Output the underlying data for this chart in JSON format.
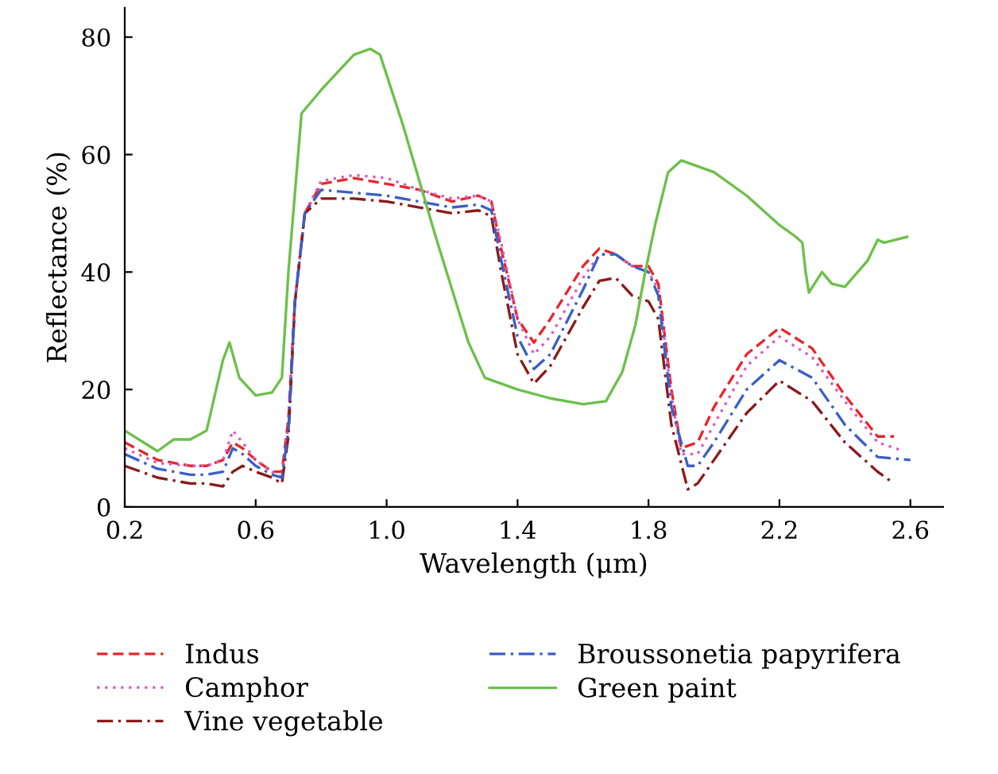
{
  "chart_data": {
    "type": "line",
    "xlabel": "Wavelength (μm)",
    "ylabel": "Reflectance (%)",
    "xlim": [
      0.2,
      2.7
    ],
    "ylim": [
      0,
      85
    ],
    "xticks": [
      {
        "value": 0.2,
        "label": "0.2"
      },
      {
        "value": 0.6,
        "label": "0.6"
      },
      {
        "value": 1.0,
        "label": "1.0"
      },
      {
        "value": 1.4,
        "label": "1.4"
      },
      {
        "value": 1.8,
        "label": "1.8"
      },
      {
        "value": 2.2,
        "label": "2.2"
      },
      {
        "value": 2.6,
        "label": "2.6"
      }
    ],
    "yticks": [
      0,
      20,
      40,
      60,
      80
    ],
    "grid": false,
    "legend": "bottom",
    "series": [
      {
        "name": "Indus",
        "color": "#e8262a",
        "line_style": "dashed",
        "x": [
          0.2,
          0.3,
          0.4,
          0.45,
          0.5,
          0.53,
          0.56,
          0.6,
          0.65,
          0.68,
          0.7,
          0.72,
          0.75,
          0.8,
          0.9,
          1.0,
          1.1,
          1.2,
          1.28,
          1.32,
          1.35,
          1.4,
          1.45,
          1.5,
          1.6,
          1.65,
          1.7,
          1.75,
          1.8,
          1.83,
          1.87,
          1.9,
          1.95,
          2.0,
          2.1,
          2.2,
          2.3,
          2.4,
          2.5,
          2.55
        ],
        "values": [
          11,
          8,
          7,
          7,
          8,
          11,
          10,
          8,
          6,
          6,
          15,
          35,
          50,
          55,
          56,
          55,
          54,
          52,
          53,
          52,
          44,
          32,
          28,
          32,
          41,
          44,
          43,
          41,
          41,
          38,
          20,
          10,
          11,
          17,
          26,
          30.5,
          27,
          19,
          12,
          12
        ]
      },
      {
        "name": "Camphor",
        "color": "#d45ec8",
        "line_style": "dotted",
        "x": [
          0.2,
          0.3,
          0.4,
          0.45,
          0.5,
          0.53,
          0.56,
          0.6,
          0.65,
          0.68,
          0.7,
          0.72,
          0.75,
          0.8,
          0.9,
          1.0,
          1.1,
          1.2,
          1.28,
          1.32,
          1.35,
          1.4,
          1.45,
          1.5,
          1.6,
          1.65,
          1.7,
          1.75,
          1.8,
          1.83,
          1.87,
          1.9,
          1.95,
          2.0,
          2.1,
          2.2,
          2.3,
          2.4,
          2.5,
          2.58
        ],
        "values": [
          10,
          7.5,
          7,
          7,
          8,
          13,
          11,
          8,
          6,
          5,
          14,
          35,
          50,
          55.5,
          56.5,
          56,
          54,
          52.5,
          53,
          52,
          45,
          32,
          26,
          29,
          39,
          43,
          43,
          41,
          40,
          37,
          19,
          9,
          9,
          14,
          24,
          29,
          25.5,
          18,
          11,
          9.5
        ]
      },
      {
        "name": "Vine vegetable",
        "color": "#8b1a1a",
        "line_style": "dashdot",
        "x": [
          0.2,
          0.3,
          0.4,
          0.45,
          0.5,
          0.53,
          0.56,
          0.6,
          0.65,
          0.68,
          0.7,
          0.72,
          0.75,
          0.8,
          0.9,
          1.0,
          1.1,
          1.2,
          1.28,
          1.32,
          1.35,
          1.4,
          1.45,
          1.5,
          1.6,
          1.65,
          1.7,
          1.75,
          1.8,
          1.83,
          1.87,
          1.92,
          1.95,
          2.0,
          2.1,
          2.2,
          2.3,
          2.4,
          2.5,
          2.55
        ],
        "values": [
          7,
          5,
          4,
          4,
          3.5,
          6,
          7,
          6,
          5,
          4,
          12,
          35,
          50,
          52.5,
          52.5,
          52,
          51,
          50,
          50.5,
          49.5,
          40,
          26,
          21,
          24,
          34,
          38.5,
          39,
          36,
          35,
          32,
          14,
          3,
          4,
          8,
          16,
          21.5,
          18,
          11,
          6,
          4
        ]
      },
      {
        "name": "Broussonetia papyrifera",
        "color": "#3a5fc8",
        "line_style": "dashdot",
        "x": [
          0.2,
          0.3,
          0.4,
          0.45,
          0.5,
          0.53,
          0.56,
          0.6,
          0.65,
          0.68,
          0.7,
          0.72,
          0.75,
          0.8,
          0.9,
          1.0,
          1.1,
          1.2,
          1.28,
          1.32,
          1.35,
          1.4,
          1.45,
          1.5,
          1.6,
          1.65,
          1.7,
          1.75,
          1.8,
          1.83,
          1.87,
          1.92,
          1.95,
          2.0,
          2.1,
          2.2,
          2.3,
          2.4,
          2.5,
          2.6
        ],
        "values": [
          9,
          6.5,
          5.5,
          5.5,
          6,
          10,
          9,
          7,
          5.5,
          5,
          13,
          35,
          50,
          54,
          53.5,
          53,
          52,
          51,
          51.5,
          50.5,
          42,
          29,
          23.5,
          26,
          37,
          43,
          43,
          41,
          40,
          36,
          17,
          7,
          7,
          11,
          20,
          25,
          22,
          14,
          8.5,
          8
        ]
      },
      {
        "name": "Green paint",
        "color": "#6cc04a",
        "line_style": "solid",
        "x": [
          0.2,
          0.3,
          0.35,
          0.4,
          0.45,
          0.5,
          0.52,
          0.55,
          0.6,
          0.65,
          0.68,
          0.7,
          0.74,
          0.8,
          0.9,
          0.95,
          0.98,
          1.05,
          1.15,
          1.25,
          1.3,
          1.4,
          1.5,
          1.6,
          1.67,
          1.72,
          1.76,
          1.79,
          1.82,
          1.86,
          1.9,
          2.0,
          2.1,
          2.2,
          2.25,
          2.27,
          2.28,
          2.29,
          2.33,
          2.36,
          2.4,
          2.47,
          2.5,
          2.52,
          2.59
        ],
        "values": [
          13,
          9.5,
          11.5,
          11.5,
          13,
          25,
          28,
          22,
          19,
          19.5,
          22,
          40,
          67,
          71,
          77,
          78,
          77,
          65,
          46,
          28,
          22,
          20,
          18.5,
          17.5,
          18,
          23,
          31,
          40,
          48,
          57,
          59,
          57,
          53,
          48,
          46,
          45,
          40,
          36.5,
          40,
          38,
          37.5,
          42,
          45.5,
          45,
          46
        ]
      }
    ]
  }
}
